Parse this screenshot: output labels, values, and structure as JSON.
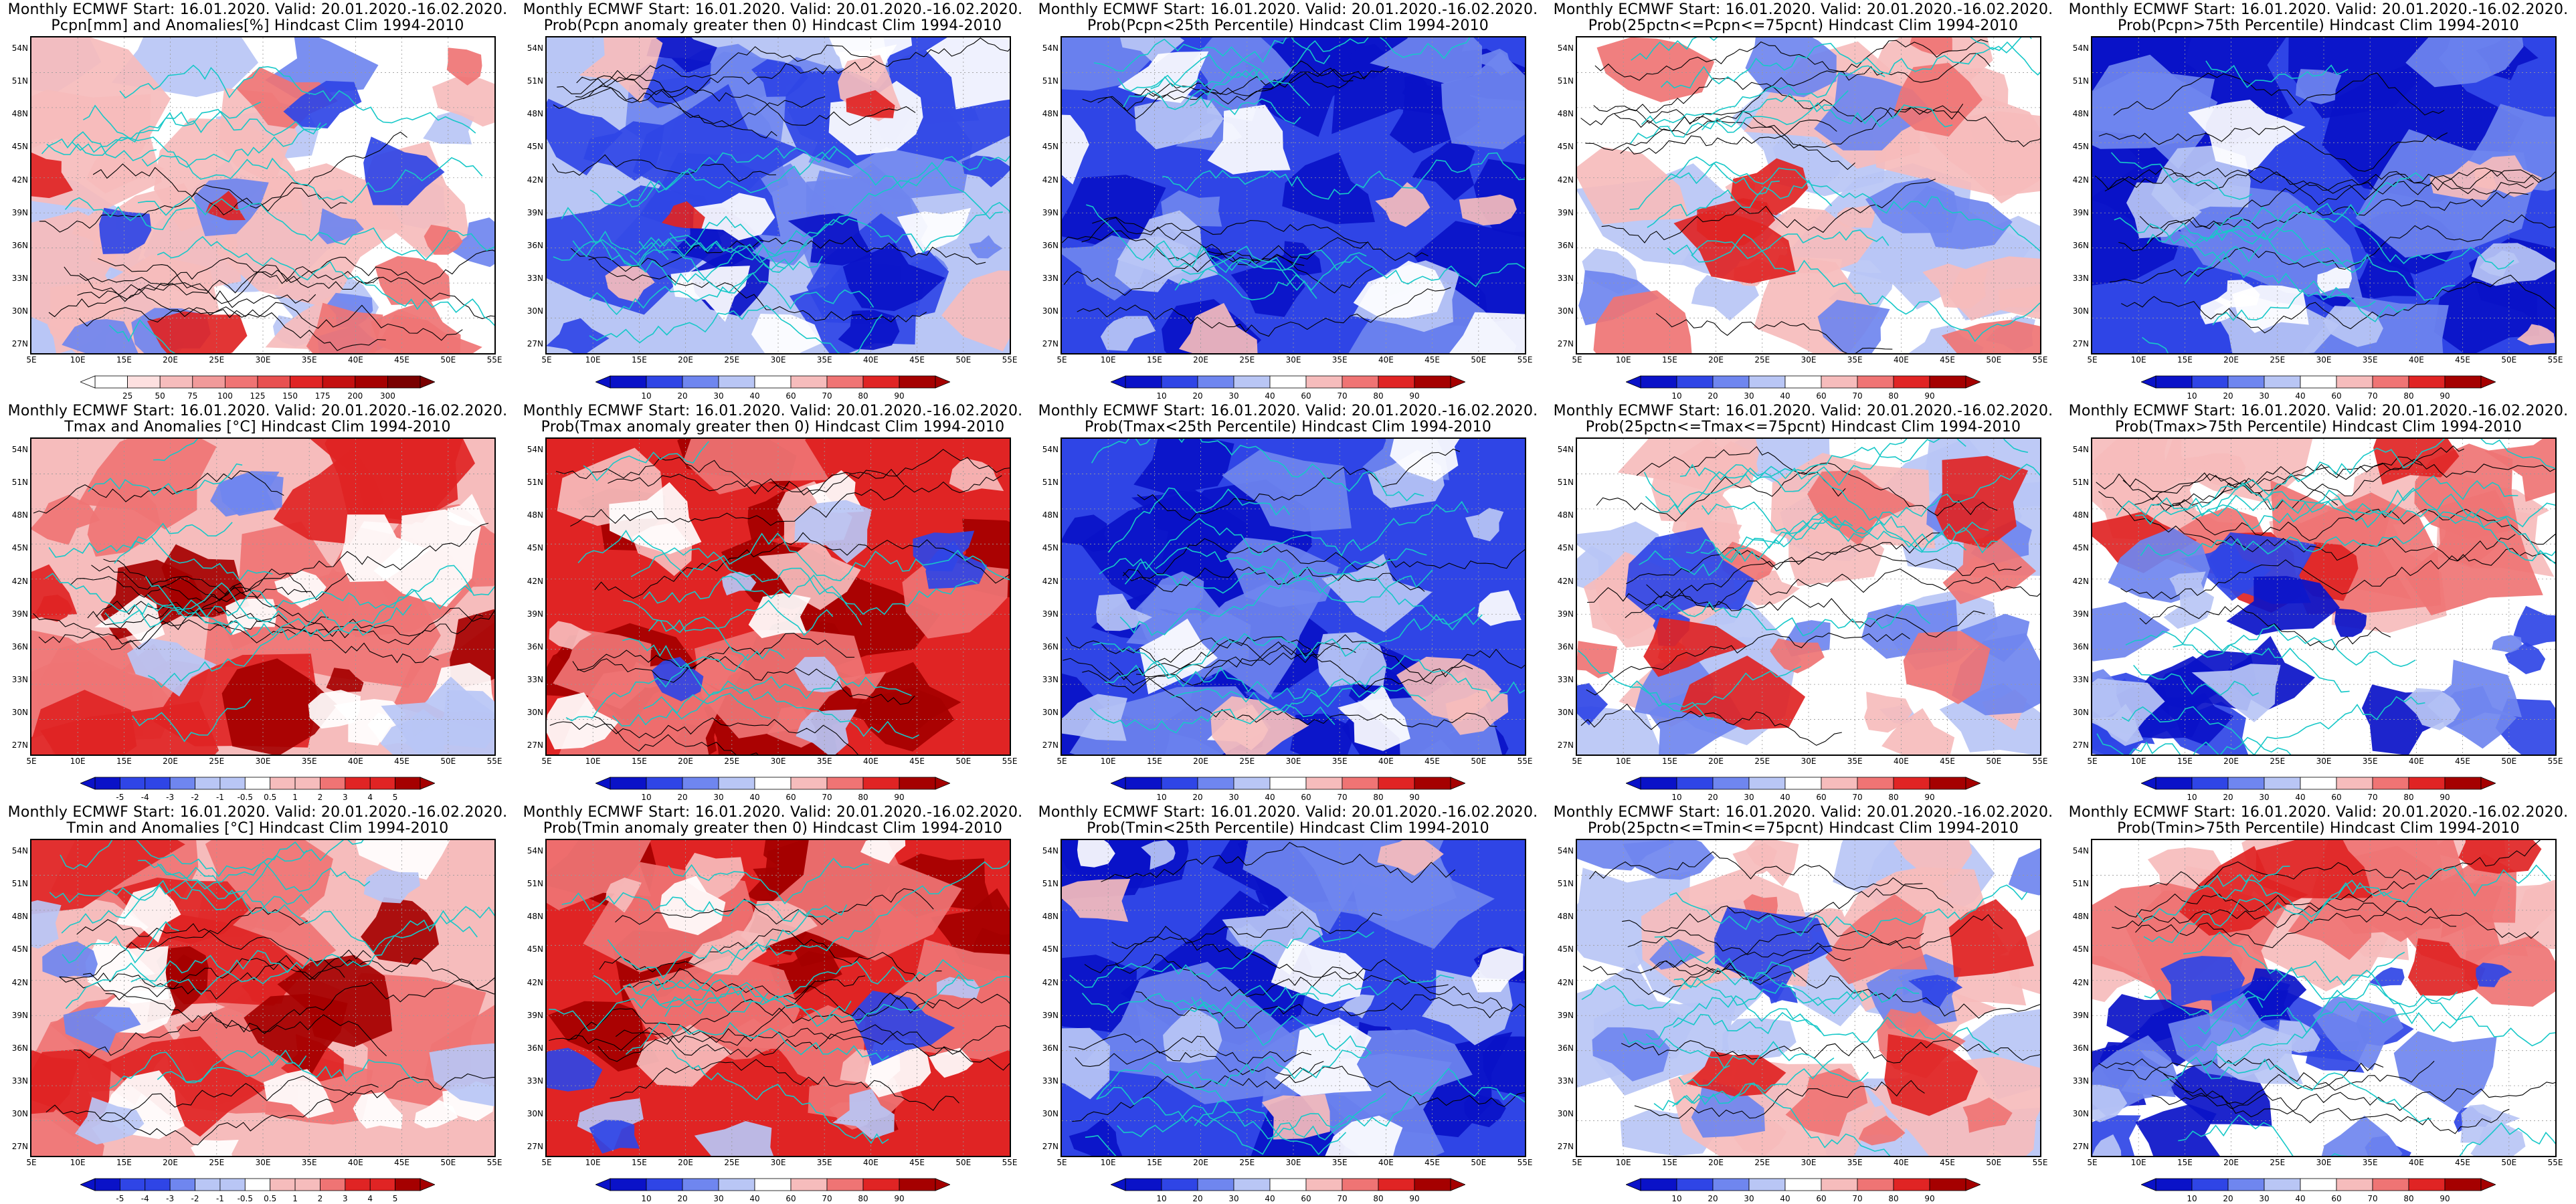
{
  "map_axes": {
    "lat_labels": [
      "54N",
      "51N",
      "48N",
      "45N",
      "42N",
      "39N",
      "36N",
      "33N",
      "30N",
      "27N"
    ],
    "lon_labels": [
      "5E",
      "10E",
      "15E",
      "20E",
      "25E",
      "30E",
      "35E",
      "40E",
      "45E",
      "50E",
      "55E"
    ]
  },
  "colors": {
    "deep_blue": "#0a12c8",
    "blue": "#2f45e6",
    "mid_blue": "#6f86ef",
    "light_blue": "#b9c6f5",
    "white": "#ffffff",
    "light_red": "#f6bcbc",
    "mid_red": "#ef7474",
    "red": "#e02424",
    "dark_red": "#a50000",
    "coastline": "#17c8c8",
    "contour": "#000000"
  },
  "colorbars": {
    "pcpn": [
      "25",
      "50",
      "75",
      "100",
      "125",
      "150",
      "175",
      "200",
      "300"
    ],
    "prob": [
      "10",
      "20",
      "30",
      "40",
      "60",
      "70",
      "80",
      "90"
    ],
    "temp": [
      "-5",
      "-4",
      "-3",
      "-2",
      "-1",
      "-0.5",
      "0.5",
      "1",
      "2",
      "3",
      "4",
      "5"
    ]
  },
  "panels": [
    {
      "title1": "Monthly ECMWF Start: 16.01.2020. Valid: 20.01.2020.-16.02.2020.",
      "title2": "Pcpn[mm] and Anomalies[%] Hindcast Clim 1994-2010",
      "bar": "pcpn",
      "scheme": "mixed_rb"
    },
    {
      "title1": "Monthly ECMWF Start: 16.01.2020. Valid: 20.01.2020.-16.02.2020.",
      "title2": "Prob(Pcpn anomaly greater then 0) Hindcast Clim 1994-2010",
      "bar": "prob",
      "scheme": "blue_main"
    },
    {
      "title1": "Monthly ECMWF Start: 16.01.2020. Valid: 20.01.2020.-16.02.2020.",
      "title2": "Prob(Pcpn<25th Percentile) Hindcast Clim 1994-2010",
      "bar": "prob",
      "scheme": "blue_strong"
    },
    {
      "title1": "Monthly ECMWF Start: 16.01.2020. Valid: 20.01.2020.-16.02.2020.",
      "title2": "Prob(25pctn<=Pcpn<=75pcnt) Hindcast Clim 1994-2010",
      "bar": "prob",
      "scheme": "mixed_light"
    },
    {
      "title1": "Monthly ECMWF Start: 16.01.2020. Valid: 20.01.2020.-16.02.2020.",
      "title2": "Prob(Pcpn>75th Percentile) Hindcast Clim 1994-2010",
      "bar": "prob",
      "scheme": "blue_strong"
    },
    {
      "title1": "Monthly ECMWF Start: 16.01.2020. Valid: 20.01.2020.-16.02.2020.",
      "title2": "Tmax and Anomalies [°C] Hindcast Clim 1994-2010",
      "bar": "temp",
      "scheme": "red_main"
    },
    {
      "title1": "Monthly ECMWF Start: 16.01.2020. Valid: 20.01.2020.-16.02.2020.",
      "title2": "Prob(Tmax anomaly greater then 0) Hindcast Clim 1994-2010",
      "bar": "prob",
      "scheme": "red_strong"
    },
    {
      "title1": "Monthly ECMWF Start: 16.01.2020. Valid: 20.01.2020.-16.02.2020.",
      "title2": "Prob(Tmax<25th Percentile) Hindcast Clim 1994-2010",
      "bar": "prob",
      "scheme": "blue_strong"
    },
    {
      "title1": "Monthly ECMWF Start: 16.01.2020. Valid: 20.01.2020.-16.02.2020.",
      "title2": "Prob(25pctn<=Tmax<=75pcnt) Hindcast Clim 1994-2010",
      "bar": "prob",
      "scheme": "mixed_rb"
    },
    {
      "title1": "Monthly ECMWF Start: 16.01.2020. Valid: 20.01.2020.-16.02.2020.",
      "title2": "Prob(Tmax>75th Percentile) Hindcast Clim 1994-2010",
      "bar": "prob",
      "scheme": "red_top_blue_bottom"
    },
    {
      "title1": "Monthly ECMWF Start: 16.01.2020. Valid: 20.01.2020.-16.02.2020.",
      "title2": "Tmin and Anomalies [°C] Hindcast Clim 1994-2010",
      "bar": "temp",
      "scheme": "red_main"
    },
    {
      "title1": "Monthly ECMWF Start: 16.01.2020. Valid: 20.01.2020.-16.02.2020.",
      "title2": "Prob(Tmin anomaly greater then 0) Hindcast Clim 1994-2010",
      "bar": "prob",
      "scheme": "red_strong"
    },
    {
      "title1": "Monthly ECMWF Start: 16.01.2020. Valid: 20.01.2020.-16.02.2020.",
      "title2": "Prob(Tmin<25th Percentile) Hindcast Clim 1994-2010",
      "bar": "prob",
      "scheme": "blue_strong"
    },
    {
      "title1": "Monthly ECMWF Start: 16.01.2020. Valid: 20.01.2020.-16.02.2020.",
      "title2": "Prob(25pctn<=Tmin<=75pcnt) Hindcast Clim 1994-2010",
      "bar": "prob",
      "scheme": "mixed_rb"
    },
    {
      "title1": "Monthly ECMWF Start: 16.01.2020. Valid: 20.01.2020.-16.02.2020.",
      "title2": "Prob(Tmin>75th Percentile) Hindcast Clim 1994-2010",
      "bar": "prob",
      "scheme": "red_top_blue_bottom"
    }
  ]
}
